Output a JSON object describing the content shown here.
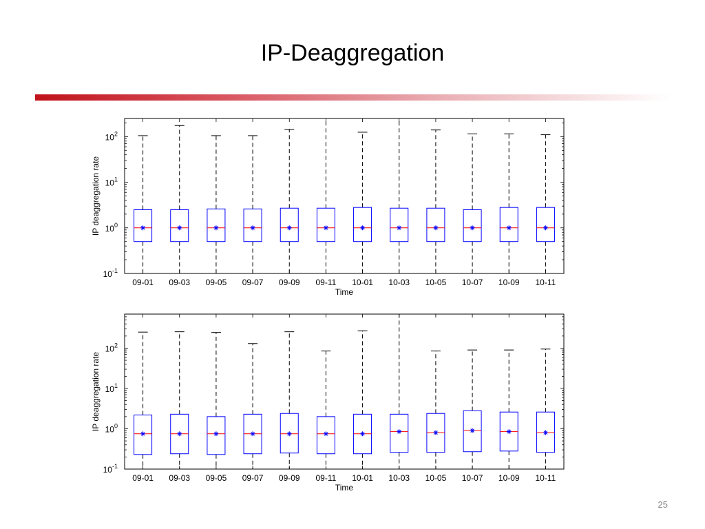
{
  "slide": {
    "title": "IP-Deaggregation",
    "page_number": "25",
    "accent_color": "#c0121a"
  },
  "chart_data": [
    {
      "type": "box",
      "xlabel": "Time",
      "ylabel": "IP deaggregation rate",
      "yscale": "log",
      "ylim": [
        0.1,
        250
      ],
      "yticks": [
        0.1,
        1,
        10,
        100
      ],
      "ytick_labels": [
        {
          "base": "10",
          "exp": "-1"
        },
        {
          "base": "10",
          "exp": "0"
        },
        {
          "base": "10",
          "exp": "1"
        },
        {
          "base": "10",
          "exp": "2"
        }
      ],
      "categories": [
        "09-01",
        "09-03",
        "09-05",
        "09-07",
        "09-09",
        "09-11",
        "10-01",
        "10-03",
        "10-05",
        "10-07",
        "10-09",
        "10-11"
      ],
      "box_color": "#0000ff",
      "median_color": "#ff0000",
      "whisker_color": "#000000",
      "mean_marker_color": "#0000ff",
      "boxes": [
        {
          "whisker_low": 0.1,
          "q1": 0.5,
          "median": 1.0,
          "q3": 2.5,
          "whisker_high": 105,
          "mean": 1.0
        },
        {
          "whisker_low": 0.1,
          "q1": 0.5,
          "median": 1.0,
          "q3": 2.5,
          "whisker_high": 175,
          "mean": 1.0
        },
        {
          "whisker_low": 0.1,
          "q1": 0.5,
          "median": 1.0,
          "q3": 2.6,
          "whisker_high": 105,
          "mean": 1.0
        },
        {
          "whisker_low": 0.1,
          "q1": 0.5,
          "median": 1.0,
          "q3": 2.6,
          "whisker_high": 105,
          "mean": 1.0
        },
        {
          "whisker_low": 0.1,
          "q1": 0.5,
          "median": 1.0,
          "q3": 2.7,
          "whisker_high": 145,
          "mean": 1.0
        },
        {
          "whisker_low": 0.1,
          "q1": 0.5,
          "median": 1.0,
          "q3": 2.7,
          "whisker_high": 250,
          "mean": 1.0
        },
        {
          "whisker_low": 0.1,
          "q1": 0.5,
          "median": 1.0,
          "q3": 2.8,
          "whisker_high": 125,
          "mean": 1.0
        },
        {
          "whisker_low": 0.1,
          "q1": 0.5,
          "median": 1.0,
          "q3": 2.7,
          "whisker_high": 250,
          "mean": 1.0
        },
        {
          "whisker_low": 0.1,
          "q1": 0.5,
          "median": 1.0,
          "q3": 2.7,
          "whisker_high": 140,
          "mean": 1.0
        },
        {
          "whisker_low": 0.1,
          "q1": 0.5,
          "median": 1.0,
          "q3": 2.5,
          "whisker_high": 115,
          "mean": 1.0
        },
        {
          "whisker_low": 0.1,
          "q1": 0.5,
          "median": 1.0,
          "q3": 2.8,
          "whisker_high": 115,
          "mean": 1.0
        },
        {
          "whisker_low": 0.1,
          "q1": 0.5,
          "median": 1.0,
          "q3": 2.8,
          "whisker_high": 110,
          "mean": 1.0
        }
      ]
    },
    {
      "type": "box",
      "xlabel": "Time",
      "ylabel": "IP deaggregation rate",
      "yscale": "log",
      "ylim": [
        0.1,
        700
      ],
      "yticks": [
        0.1,
        1,
        10,
        100
      ],
      "ytick_labels": [
        {
          "base": "10",
          "exp": "-1"
        },
        {
          "base": "10",
          "exp": "0"
        },
        {
          "base": "10",
          "exp": "1"
        },
        {
          "base": "10",
          "exp": "2"
        }
      ],
      "categories": [
        "09-01",
        "09-03",
        "09-05",
        "09-07",
        "09-09",
        "09-11",
        "10-01",
        "10-03",
        "10-05",
        "10-07",
        "10-09",
        "10-11"
      ],
      "box_color": "#0000ff",
      "median_color": "#ff0000",
      "whisker_color": "#000000",
      "mean_marker_color": "#0000ff",
      "boxes": [
        {
          "whisker_low": 0.1,
          "q1": 0.23,
          "median": 0.75,
          "q3": 2.2,
          "whisker_high": 250,
          "mean": 0.75
        },
        {
          "whisker_low": 0.1,
          "q1": 0.24,
          "median": 0.75,
          "q3": 2.3,
          "whisker_high": 255,
          "mean": 0.75
        },
        {
          "whisker_low": 0.1,
          "q1": 0.23,
          "median": 0.75,
          "q3": 2.0,
          "whisker_high": 245,
          "mean": 0.75
        },
        {
          "whisker_low": 0.1,
          "q1": 0.24,
          "median": 0.75,
          "q3": 2.3,
          "whisker_high": 130,
          "mean": 0.75
        },
        {
          "whisker_low": 0.1,
          "q1": 0.25,
          "median": 0.75,
          "q3": 2.4,
          "whisker_high": 255,
          "mean": 0.75
        },
        {
          "whisker_low": 0.1,
          "q1": 0.24,
          "median": 0.75,
          "q3": 2.0,
          "whisker_high": 85,
          "mean": 0.75
        },
        {
          "whisker_low": 0.1,
          "q1": 0.24,
          "median": 0.75,
          "q3": 2.3,
          "whisker_high": 270,
          "mean": 0.75
        },
        {
          "whisker_low": 0.1,
          "q1": 0.26,
          "median": 0.85,
          "q3": 2.3,
          "whisker_high": 700,
          "mean": 0.85
        },
        {
          "whisker_low": 0.1,
          "q1": 0.26,
          "median": 0.8,
          "q3": 2.4,
          "whisker_high": 85,
          "mean": 0.8
        },
        {
          "whisker_low": 0.1,
          "q1": 0.27,
          "median": 0.9,
          "q3": 2.8,
          "whisker_high": 90,
          "mean": 0.9
        },
        {
          "whisker_low": 0.1,
          "q1": 0.28,
          "median": 0.85,
          "q3": 2.6,
          "whisker_high": 90,
          "mean": 0.85
        },
        {
          "whisker_low": 0.1,
          "q1": 0.26,
          "median": 0.8,
          "q3": 2.6,
          "whisker_high": 95,
          "mean": 0.8
        }
      ]
    }
  ]
}
